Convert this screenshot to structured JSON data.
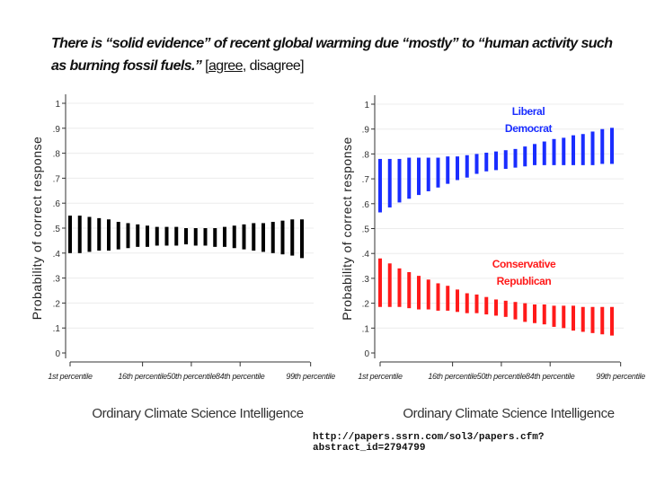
{
  "title": {
    "statement": "There is “solid evidence” of recent global warming due “mostly” to “human activity such as burning fossil fuels.”",
    "bracket_open": " [",
    "answer_correct": "agree",
    "answer_rest": ", disagree]"
  },
  "source_url": "http://papers.ssrn.com/sol3/papers.cfm?abstract_id=2794799",
  "chart_data": [
    {
      "type": "range-bar",
      "xlabel": "Ordinary Climate Science Intelligence",
      "ylabel": "Probability of correct response",
      "ylim": [
        0,
        1
      ],
      "yticks": [
        "0",
        ".1",
        ".2",
        ".3",
        ".4",
        ".5",
        ".6",
        ".7",
        ".8",
        ".9",
        "1"
      ],
      "xticks": [
        "1st percentile",
        "16th percentile",
        "50th percentile",
        "84th percentile",
        "99th percentile"
      ],
      "grid": true,
      "series": [
        {
          "color": "#000000",
          "upper": [
            0.55,
            0.55,
            0.545,
            0.54,
            0.535,
            0.525,
            0.52,
            0.515,
            0.51,
            0.505,
            0.505,
            0.505,
            0.5,
            0.5,
            0.5,
            0.5,
            0.505,
            0.51,
            0.515,
            0.52,
            0.52,
            0.525,
            0.53,
            0.535,
            0.535
          ],
          "lower": [
            0.4,
            0.4,
            0.405,
            0.41,
            0.41,
            0.415,
            0.42,
            0.425,
            0.425,
            0.43,
            0.43,
            0.43,
            0.435,
            0.43,
            0.43,
            0.425,
            0.425,
            0.42,
            0.415,
            0.41,
            0.405,
            0.4,
            0.395,
            0.39,
            0.38
          ]
        }
      ]
    },
    {
      "type": "range-bar",
      "xlabel": "Ordinary Climate Science Intelligence",
      "ylabel": "Probability of correct response",
      "ylim": [
        0,
        1
      ],
      "yticks": [
        "0",
        ".1",
        ".2",
        ".3",
        ".4",
        ".5",
        ".6",
        ".7",
        ".8",
        ".9",
        "1"
      ],
      "xticks": [
        "1st percentile",
        "16th percentile",
        "50th percentile",
        "84th percentile",
        "99th percentile"
      ],
      "grid": true,
      "series": [
        {
          "name": "Liberal Democrat",
          "label_lines": [
            "Liberal",
            "Democrat"
          ],
          "color": "#1a2dff",
          "upper": [
            0.78,
            0.78,
            0.78,
            0.785,
            0.785,
            0.785,
            0.785,
            0.79,
            0.79,
            0.795,
            0.8,
            0.805,
            0.81,
            0.815,
            0.82,
            0.83,
            0.84,
            0.85,
            0.86,
            0.865,
            0.875,
            0.88,
            0.89,
            0.9,
            0.905
          ],
          "lower": [
            0.565,
            0.585,
            0.605,
            0.62,
            0.635,
            0.65,
            0.665,
            0.68,
            0.695,
            0.705,
            0.72,
            0.73,
            0.735,
            0.74,
            0.745,
            0.75,
            0.755,
            0.755,
            0.755,
            0.755,
            0.755,
            0.755,
            0.755,
            0.76,
            0.76
          ]
        },
        {
          "name": "Conservative Republican",
          "label_lines": [
            "Conservative",
            "Republican"
          ],
          "color": "#ff1a1a",
          "upper": [
            0.38,
            0.36,
            0.34,
            0.325,
            0.31,
            0.295,
            0.28,
            0.27,
            0.255,
            0.24,
            0.235,
            0.225,
            0.215,
            0.21,
            0.205,
            0.2,
            0.195,
            0.195,
            0.19,
            0.19,
            0.19,
            0.185,
            0.185,
            0.185,
            0.185
          ],
          "lower": [
            0.185,
            0.185,
            0.185,
            0.18,
            0.175,
            0.175,
            0.17,
            0.17,
            0.165,
            0.16,
            0.16,
            0.155,
            0.15,
            0.145,
            0.135,
            0.125,
            0.12,
            0.115,
            0.105,
            0.1,
            0.09,
            0.085,
            0.08,
            0.075,
            0.07
          ]
        }
      ]
    }
  ]
}
